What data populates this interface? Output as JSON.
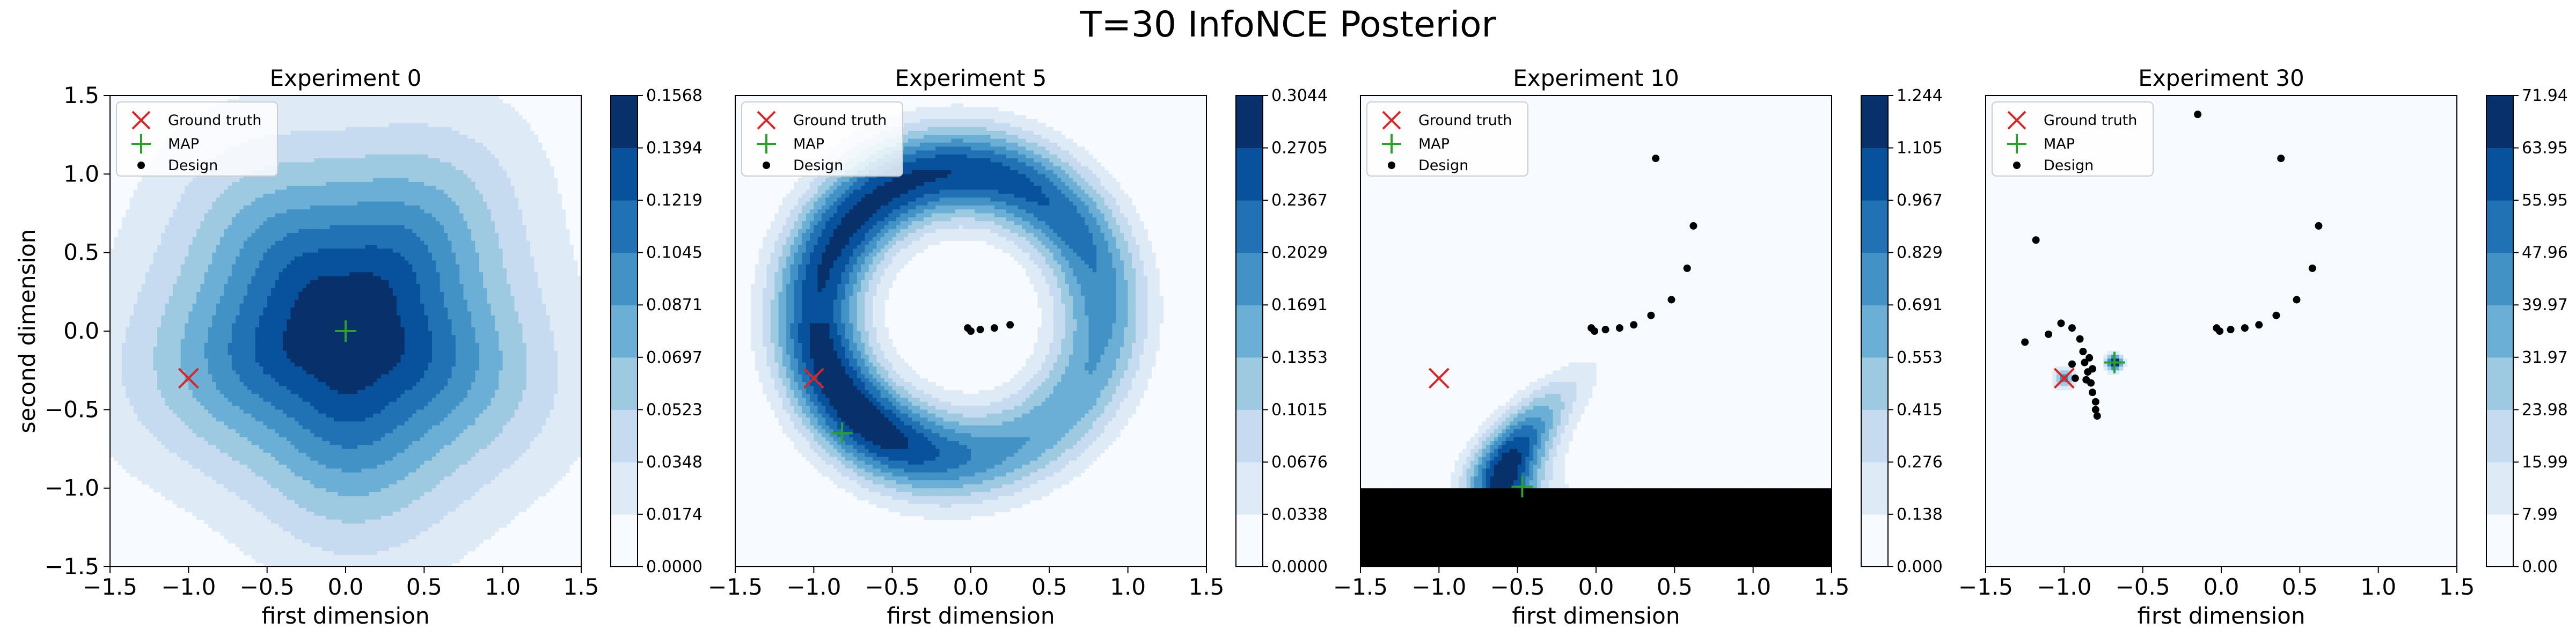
{
  "figure": {
    "title": "T=30 InfoNCE Posterior"
  },
  "colors": {
    "ramp": [
      "#f7fbff",
      "#deebf7",
      "#c6dbef",
      "#9ecae1",
      "#6baed6",
      "#4292c6",
      "#2171b5",
      "#08519c",
      "#08306b"
    ],
    "ground_truth": "#d62728",
    "map": "#2ca02c",
    "design": "#000000"
  },
  "chart_data": [
    {
      "type": "contour",
      "title": "Experiment 0",
      "xlabel": "first dimension",
      "ylabel": "second dimension",
      "xlim": [
        -1.5,
        1.5
      ],
      "ylim": [
        -1.5,
        1.5
      ],
      "xticks": [
        "−1.5",
        "−1.0",
        "−0.5",
        "0.0",
        "0.5",
        "1.0",
        "1.5"
      ],
      "yticks": [
        "−1.5",
        "−1.0",
        "−0.5",
        "0.0",
        "0.5",
        "1.0",
        "1.5"
      ],
      "colorbar_ticks": [
        "0.0000",
        "0.0174",
        "0.0348",
        "0.0523",
        "0.0697",
        "0.0871",
        "0.1045",
        "0.1219",
        "0.1394",
        "0.1568"
      ],
      "legend": [
        "Ground truth",
        "MAP",
        "Design"
      ],
      "ground_truth": [
        -1.0,
        -0.3
      ],
      "map": [
        0.0,
        0.0
      ],
      "designs": []
    },
    {
      "type": "contour",
      "title": "Experiment 5",
      "xlabel": "first dimension",
      "ylabel": "",
      "xlim": [
        -1.5,
        1.5
      ],
      "ylim": [
        -1.5,
        1.5
      ],
      "xticks": [
        "−1.5",
        "−1.0",
        "−0.5",
        "0.0",
        "0.5",
        "1.0",
        "1.5"
      ],
      "yticks": [],
      "colorbar_ticks": [
        "0.0000",
        "0.0338",
        "0.0676",
        "0.1015",
        "0.1353",
        "0.1691",
        "0.2029",
        "0.2367",
        "0.2705",
        "0.3044"
      ],
      "legend": [
        "Ground truth",
        "MAP",
        "Design"
      ],
      "ground_truth": [
        -1.0,
        -0.3
      ],
      "map": [
        -0.82,
        -0.65
      ],
      "designs": [
        [
          -0.02,
          0.02
        ],
        [
          0.0,
          0.0
        ],
        [
          0.06,
          0.01
        ],
        [
          0.15,
          0.02
        ],
        [
          0.25,
          0.04
        ]
      ]
    },
    {
      "type": "contour",
      "title": "Experiment 10",
      "xlabel": "first dimension",
      "ylabel": "",
      "xlim": [
        -1.5,
        1.5
      ],
      "ylim": [
        -1.5,
        1.5
      ],
      "xticks": [
        "−1.5",
        "−1.0",
        "−0.5",
        "0.0",
        "0.5",
        "1.0",
        "1.5"
      ],
      "yticks": [],
      "colorbar_ticks": [
        "0.000",
        "0.138",
        "0.276",
        "0.415",
        "0.553",
        "0.691",
        "0.829",
        "0.967",
        "1.105",
        "1.244"
      ],
      "legend": [
        "Ground truth",
        "MAP",
        "Design"
      ],
      "ground_truth": [
        -1.0,
        -0.3
      ],
      "map": [
        -0.47,
        -0.99
      ],
      "designs": [
        [
          -0.03,
          0.02
        ],
        [
          -0.01,
          0.0
        ],
        [
          0.06,
          0.01
        ],
        [
          0.15,
          0.02
        ],
        [
          0.24,
          0.04
        ],
        [
          0.35,
          0.1
        ],
        [
          0.48,
          0.2
        ],
        [
          0.58,
          0.4
        ],
        [
          0.62,
          0.67
        ],
        [
          0.38,
          1.1
        ]
      ]
    },
    {
      "type": "contour",
      "title": "Experiment 30",
      "xlabel": "first dimension",
      "ylabel": "",
      "xlim": [
        -1.5,
        1.5
      ],
      "ylim": [
        -1.5,
        1.5
      ],
      "xticks": [
        "−1.5",
        "−1.0",
        "−0.5",
        "0.0",
        "0.5",
        "1.0",
        "1.5"
      ],
      "yticks": [],
      "colorbar_ticks": [
        "0.00",
        "7.99",
        "15.99",
        "23.98",
        "31.97",
        "39.97",
        "47.96",
        "55.95",
        "63.95",
        "71.94"
      ],
      "legend": [
        "Ground truth",
        "MAP",
        "Design"
      ],
      "ground_truth": [
        -1.0,
        -0.3
      ],
      "map": [
        -0.68,
        -0.2
      ],
      "designs": [
        [
          -0.03,
          0.02
        ],
        [
          -0.01,
          0.0
        ],
        [
          0.06,
          0.01
        ],
        [
          0.15,
          0.02
        ],
        [
          0.24,
          0.04
        ],
        [
          0.35,
          0.1
        ],
        [
          0.48,
          0.2
        ],
        [
          0.58,
          0.4
        ],
        [
          0.62,
          0.67
        ],
        [
          0.38,
          1.1
        ],
        [
          -0.15,
          1.38
        ],
        [
          -1.18,
          0.58
        ],
        [
          -1.25,
          -0.07
        ],
        [
          -1.1,
          -0.02
        ],
        [
          -1.02,
          0.05
        ],
        [
          -0.95,
          0.02
        ],
        [
          -0.9,
          -0.05
        ],
        [
          -0.88,
          -0.13
        ],
        [
          -0.87,
          -0.2
        ],
        [
          -0.85,
          -0.26
        ],
        [
          -0.83,
          -0.33
        ],
        [
          -0.82,
          -0.39
        ],
        [
          -0.8,
          -0.45
        ],
        [
          -0.8,
          -0.5
        ],
        [
          -0.79,
          -0.54
        ],
        [
          -0.95,
          -0.21
        ],
        [
          -0.93,
          -0.3
        ],
        [
          -0.84,
          -0.17
        ],
        [
          -0.86,
          -0.31
        ],
        [
          -0.82,
          -0.24
        ]
      ]
    }
  ]
}
